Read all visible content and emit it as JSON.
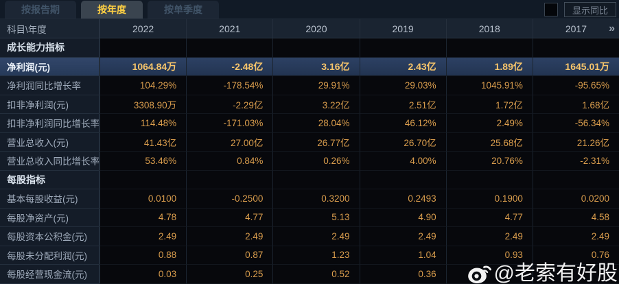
{
  "tabs": [
    {
      "id": "by-report-period",
      "label": "按报告期",
      "active": false
    },
    {
      "id": "by-year",
      "label": "按年度",
      "active": true
    },
    {
      "id": "by-single-quarter",
      "label": "按单季度",
      "active": false
    }
  ],
  "controls": {
    "show_yoy_label": "显示同比",
    "checkbox_checked": false
  },
  "table": {
    "corner_header": "科目\\年度",
    "years": [
      "2022",
      "2021",
      "2020",
      "2019",
      "2018",
      "2017"
    ],
    "more_icon": "»",
    "rows": [
      {
        "type": "section",
        "label": "成长能力指标",
        "values": [
          "",
          "",
          "",
          "",
          "",
          ""
        ]
      },
      {
        "type": "data",
        "highlight": true,
        "label": "净利润(元)",
        "values": [
          "1064.84万",
          "-2.48亿",
          "3.16亿",
          "2.43亿",
          "1.89亿",
          "1645.01万"
        ]
      },
      {
        "type": "data",
        "label": "净利润同比增长率",
        "values": [
          "104.29%",
          "-178.54%",
          "29.91%",
          "29.03%",
          "1045.91%",
          "-95.65%"
        ]
      },
      {
        "type": "data",
        "label": "扣非净利润(元)",
        "values": [
          "3308.90万",
          "-2.29亿",
          "3.22亿",
          "2.51亿",
          "1.72亿",
          "1.68亿"
        ]
      },
      {
        "type": "data",
        "label": "扣非净利润同比增长率",
        "values": [
          "114.48%",
          "-171.03%",
          "28.04%",
          "46.12%",
          "2.49%",
          "-56.34%"
        ]
      },
      {
        "type": "data",
        "label": "营业总收入(元)",
        "values": [
          "41.43亿",
          "27.00亿",
          "26.77亿",
          "26.70亿",
          "25.68亿",
          "21.26亿"
        ]
      },
      {
        "type": "data",
        "label": "营业总收入同比增长率",
        "values": [
          "53.46%",
          "0.84%",
          "0.26%",
          "4.00%",
          "20.76%",
          "-2.31%"
        ]
      },
      {
        "type": "section",
        "label": "每股指标",
        "values": [
          "",
          "",
          "",
          "",
          "",
          ""
        ]
      },
      {
        "type": "data",
        "label": "基本每股收益(元)",
        "values": [
          "0.0100",
          "-0.2500",
          "0.3200",
          "0.2493",
          "0.1900",
          "0.0200"
        ]
      },
      {
        "type": "data",
        "label": "每股净资产(元)",
        "values": [
          "4.78",
          "4.77",
          "5.13",
          "4.90",
          "4.77",
          "4.58"
        ]
      },
      {
        "type": "data",
        "label": "每股资本公积金(元)",
        "values": [
          "2.49",
          "2.49",
          "2.49",
          "2.49",
          "2.49",
          "2.49"
        ]
      },
      {
        "type": "data",
        "label": "每股未分配利润(元)",
        "values": [
          "0.88",
          "0.87",
          "1.23",
          "1.04",
          "0.93",
          "0.76"
        ]
      },
      {
        "type": "data",
        "label": "每股经营现金流(元)",
        "values": [
          "0.03",
          "0.25",
          "0.52",
          "0.36",
          "",
          ""
        ]
      }
    ]
  },
  "watermark": {
    "text": "@老索有好股"
  },
  "colors": {
    "accent_gold": "#ffd043",
    "value_gold": "#d99d4d",
    "highlight_row": "#2d4164",
    "header_bg": "#1a2431",
    "label_bg": "#141c28",
    "data_bg": "#07080c"
  }
}
